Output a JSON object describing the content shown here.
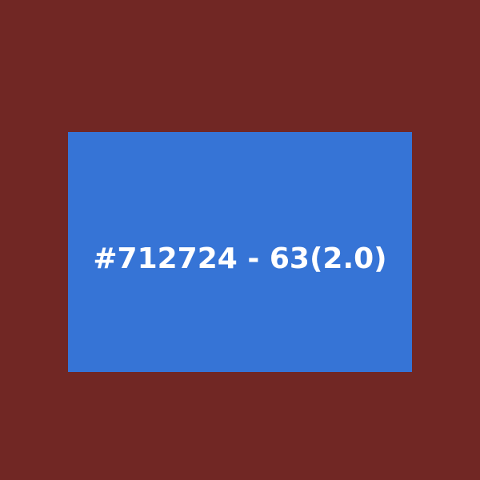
{
  "colors": {
    "background": "#712724",
    "panel": "#3674d6",
    "text": "#ffffff"
  },
  "swatch": {
    "label": "#712724 - 63(2.0)"
  }
}
